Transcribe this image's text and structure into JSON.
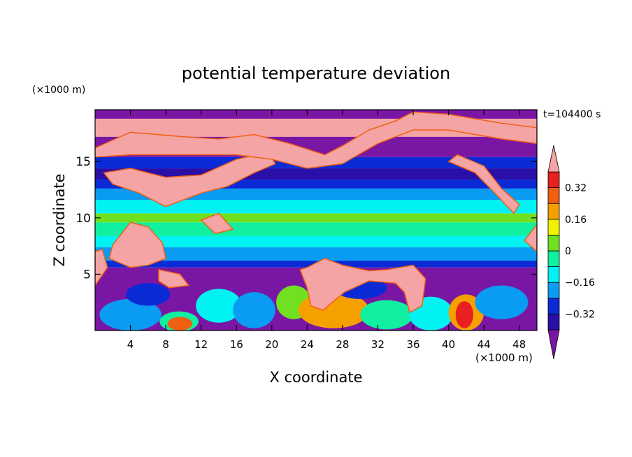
{
  "chart_data": {
    "type": "heatmap",
    "title": "potential temperature deviation",
    "xlabel": "X coordinate",
    "ylabel": "Z coordinate",
    "x_unit": "(×1000 m)",
    "y_unit": "(×1000 m)",
    "time_label": "t=104400 s",
    "xlim": [
      0,
      50
    ],
    "ylim": [
      0,
      19.6
    ],
    "x_ticks": [
      4,
      8,
      12,
      16,
      20,
      24,
      28,
      32,
      36,
      40,
      44,
      48
    ],
    "y_ticks": [
      5,
      10,
      15
    ],
    "colorbar": {
      "levels": [
        -0.4,
        -0.32,
        -0.24,
        -0.16,
        -0.08,
        0,
        0.08,
        0.16,
        0.24,
        0.32,
        0.4
      ],
      "tick_labels": [
        "0.32",
        "0.16",
        "0",
        "−0.16",
        "−0.32"
      ],
      "tick_values": [
        0.32,
        0.16,
        0,
        -0.16,
        -0.32
      ],
      "colors": [
        "#7a16a4",
        "#2a0ea8",
        "#0a2ad6",
        "#0a9bf2",
        "#00f2f2",
        "#10f0a0",
        "#70e020",
        "#f2f200",
        "#f6a000",
        "#f06010",
        "#e82020",
        "#f4a4a4"
      ],
      "extends": "both"
    }
  }
}
